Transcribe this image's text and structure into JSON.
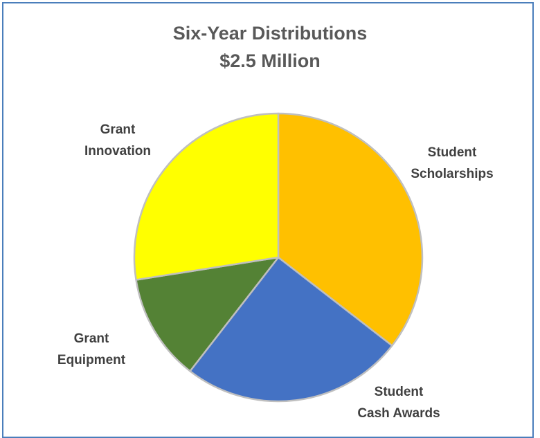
{
  "chart_data": {
    "type": "pie",
    "title": "Six-Year Distributions",
    "subtitle": "$2.5 Million",
    "start_angle_deg": 0,
    "direction": "clockwise",
    "slices": [
      {
        "label_lines": [
          "Student",
          "Scholarships"
        ],
        "value": 35.5,
        "color": "#FFC000"
      },
      {
        "label_lines": [
          "Student",
          "Cash Awards"
        ],
        "value": 25.0,
        "color": "#4472C4"
      },
      {
        "label_lines": [
          "Grant",
          "Equipment"
        ],
        "value": 12.0,
        "color": "#548235"
      },
      {
        "label_lines": [
          "Grant",
          "Innovation"
        ],
        "value": 27.5,
        "color": "#FFFF00"
      }
    ],
    "slice_border_color": "#BFBFBF",
    "legend": "none",
    "labels": "outside"
  }
}
